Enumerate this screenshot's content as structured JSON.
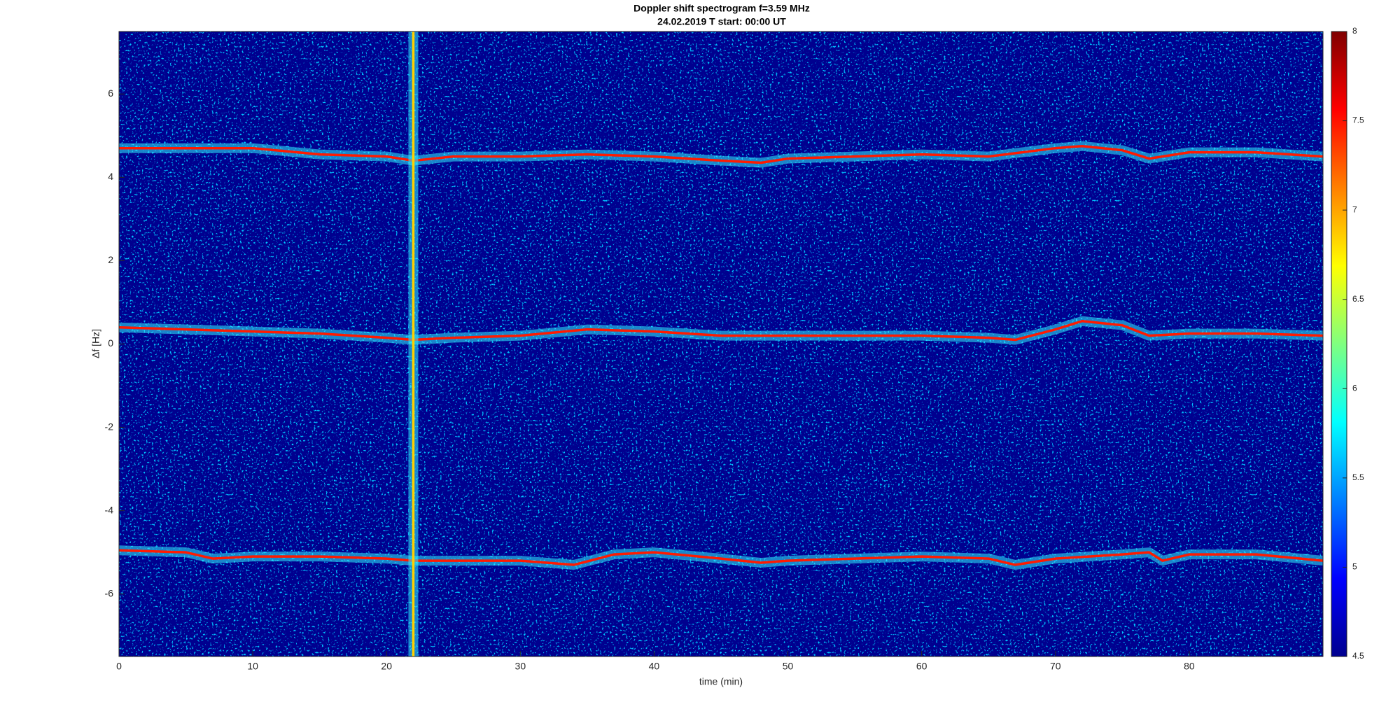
{
  "chart_data": {
    "type": "spectrogram",
    "title": "Doppler shift spectrogram f=3.59 MHz",
    "subtitle": "24.02.2019   T start: 00:00 UT",
    "x_label": "time (min)",
    "y_label": "Δf [Hz]",
    "xlim": [
      0,
      90
    ],
    "xticks": [
      0,
      10,
      20,
      30,
      40,
      50,
      60,
      70,
      80
    ],
    "ylim": [
      -7.5,
      7.5
    ],
    "yticks": [
      -6,
      -4,
      -2,
      0,
      2,
      4,
      6
    ],
    "background": "#00008f",
    "colorbar": {
      "lim": [
        4.5,
        8
      ],
      "ticks": [
        4.5,
        5,
        5.5,
        6,
        6.5,
        7,
        7.5,
        8
      ]
    },
    "series": [
      {
        "color": "#ff1a00",
        "x": [
          0,
          5,
          10,
          15,
          20,
          22,
          25,
          30,
          35,
          40,
          45,
          48,
          50,
          55,
          60,
          65,
          70,
          72,
          75,
          77,
          80,
          85,
          90
        ],
        "values": [
          4.7,
          4.7,
          4.7,
          4.55,
          4.5,
          4.4,
          4.5,
          4.5,
          4.55,
          4.5,
          4.4,
          4.35,
          4.45,
          4.5,
          4.55,
          4.5,
          4.7,
          4.75,
          4.65,
          4.45,
          4.6,
          4.6,
          4.5
        ]
      },
      {
        "color": "#ff1a00",
        "x": [
          0,
          5,
          10,
          15,
          20,
          22,
          25,
          30,
          35,
          40,
          45,
          50,
          55,
          60,
          65,
          67,
          70,
          72,
          75,
          77,
          80,
          85,
          90
        ],
        "values": [
          0.4,
          0.35,
          0.3,
          0.25,
          0.15,
          0.1,
          0.15,
          0.2,
          0.35,
          0.3,
          0.2,
          0.2,
          0.2,
          0.2,
          0.15,
          0.1,
          0.35,
          0.55,
          0.45,
          0.2,
          0.25,
          0.25,
          0.2
        ]
      },
      {
        "color": "#ff1a00",
        "x": [
          0,
          5,
          7,
          10,
          15,
          20,
          22,
          25,
          30,
          34,
          37,
          40,
          45,
          48,
          50,
          55,
          60,
          65,
          67,
          70,
          75,
          77,
          78,
          80,
          85,
          90
        ],
        "values": [
          -4.95,
          -5.0,
          -5.15,
          -5.1,
          -5.1,
          -5.15,
          -5.2,
          -5.2,
          -5.2,
          -5.3,
          -5.05,
          -5.0,
          -5.15,
          -5.25,
          -5.2,
          -5.15,
          -5.1,
          -5.15,
          -5.3,
          -5.15,
          -5.05,
          -5.0,
          -5.2,
          -5.05,
          -5.05,
          -5.2
        ]
      },
      {
        "color": "#ffd000",
        "x": [
          22,
          22
        ],
        "values": [
          -7.5,
          7.5
        ]
      }
    ]
  }
}
